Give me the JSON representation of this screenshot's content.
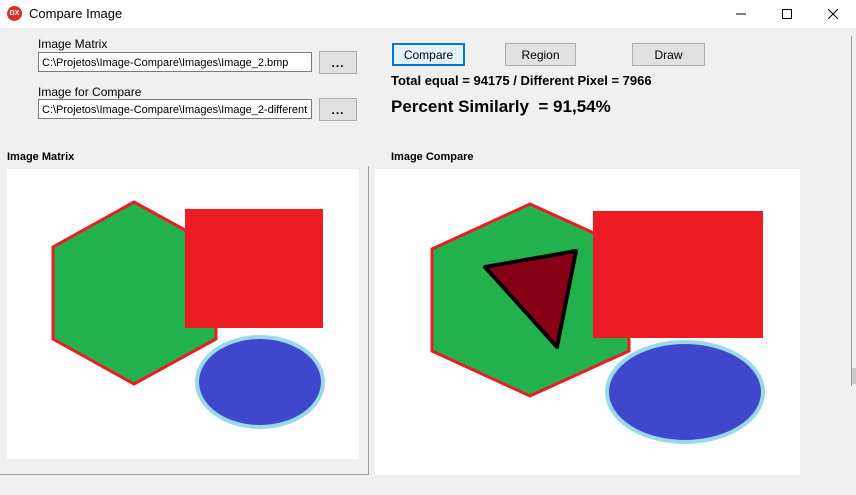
{
  "window": {
    "title": "Compare Image",
    "icon_text": "DX",
    "app_icon_color": "#d7312a"
  },
  "matrix": {
    "label": "Image Matrix",
    "path": "C:\\Projetos\\Image-Compare\\Images\\Image_2.bmp",
    "browse_label": "..."
  },
  "compare_input": {
    "label": "Image for Compare",
    "path": "C:\\Projetos\\Image-Compare\\Images\\Image_2-different",
    "browse_label": "..."
  },
  "actions": {
    "compare_label": "Compare",
    "region_label": "Region",
    "draw_label": "Draw"
  },
  "results": {
    "totals_text": "Total equal = 94175 / Different Pixel = 7966",
    "percent_text": "Percent Similarly  = 91,54%"
  },
  "panels": {
    "matrix_title": "Image Matrix",
    "compare_title": "Image Compare"
  },
  "colors": {
    "hexagon_fill": "#23b14d",
    "hexagon_stroke": "#ed1c24",
    "square_fill": "#ed1c24",
    "ellipse_fill": "#3f48cc",
    "ellipse_stroke": "#99d9ea",
    "triangle_fill": "#880015",
    "focus_blue": "#0078d7"
  }
}
